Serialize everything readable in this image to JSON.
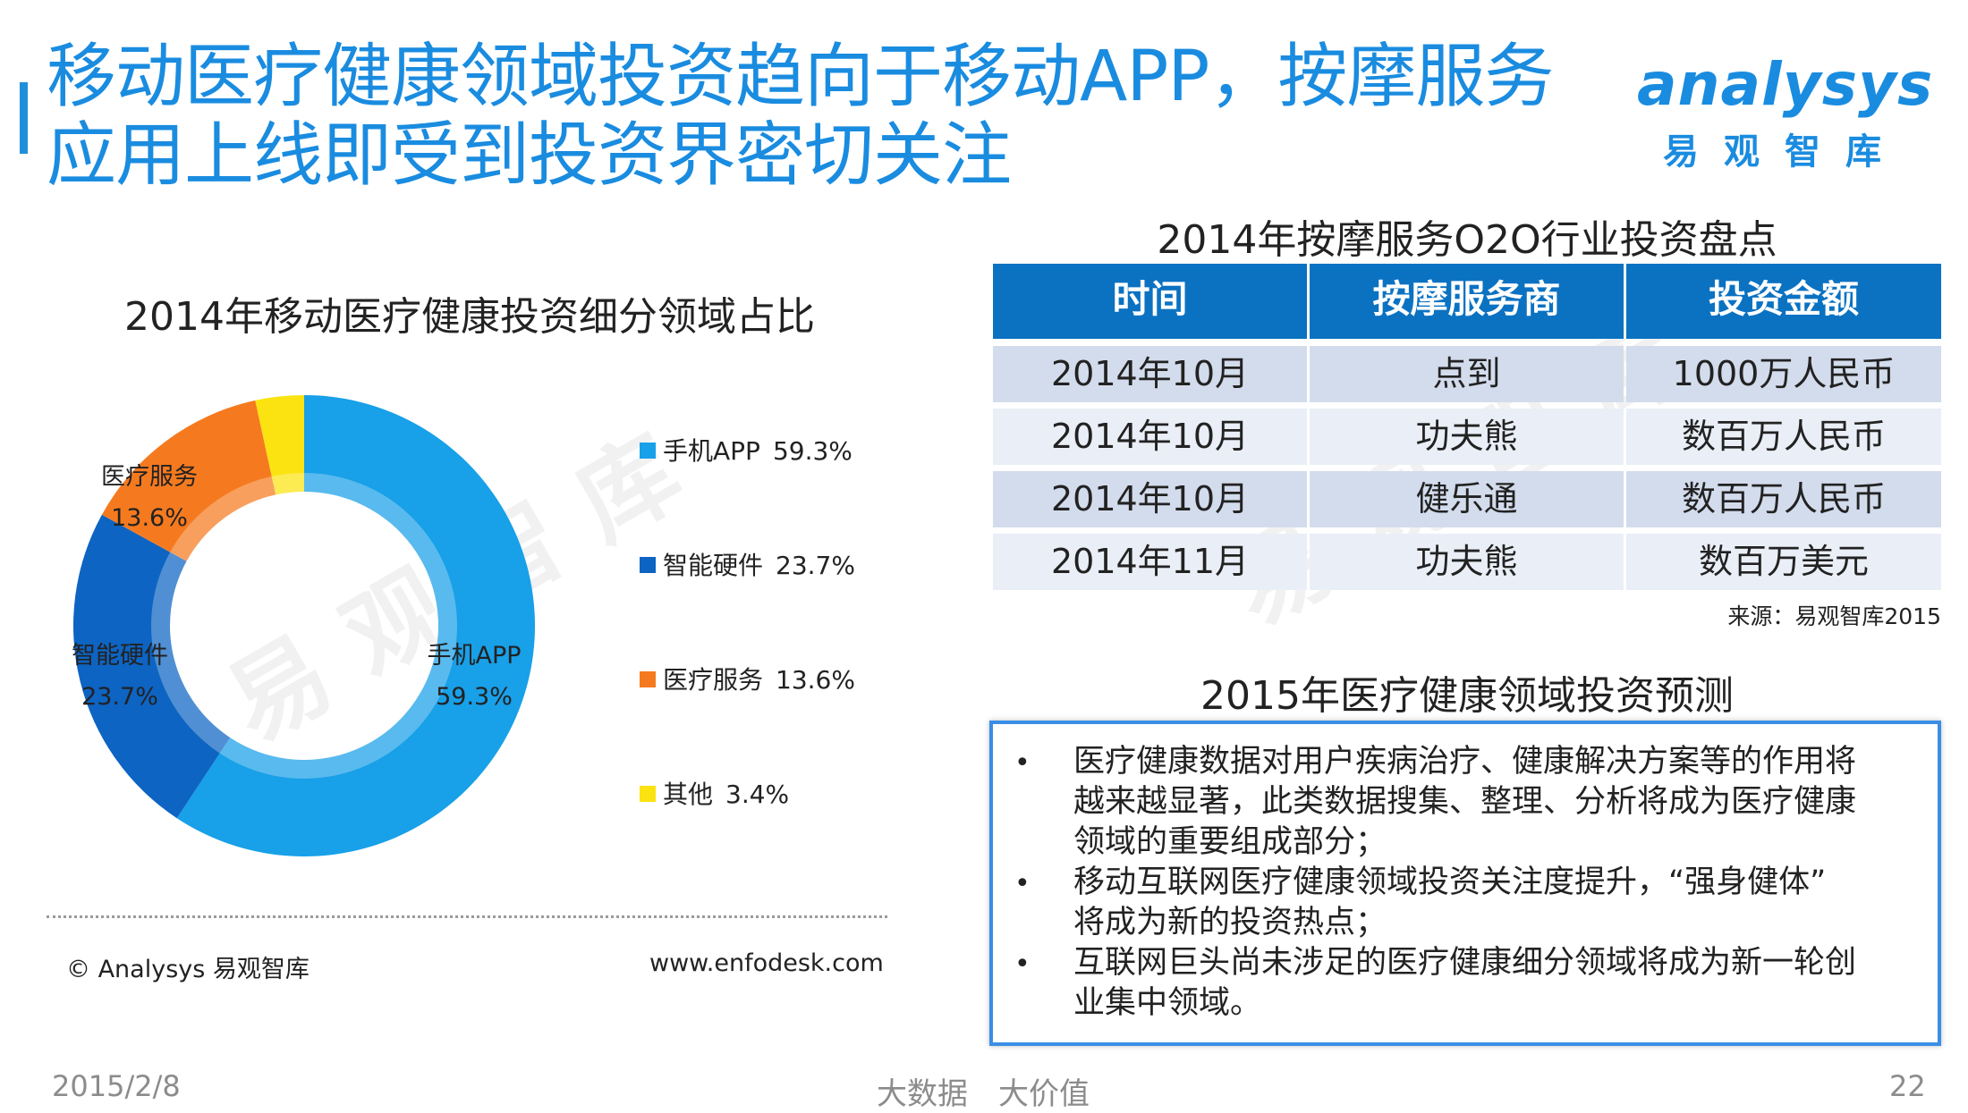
{
  "header": {
    "title_line1": "移动医疗健康领域投资趋向于移动APP，按摩服务",
    "title_line2": "应用上线即受到投资界密切关注"
  },
  "logo": {
    "wordmark": "analysys",
    "cn": "易观智库"
  },
  "watermark": "易观智库",
  "chart_data": {
    "type": "pie",
    "style": "donut",
    "title": "2014年移动医疗健康投资细分领域占比",
    "categories": [
      "手机APP",
      "智能硬件",
      "医疗服务",
      "其他"
    ],
    "values": [
      59.3,
      23.7,
      13.6,
      3.4
    ],
    "value_labels": [
      "59.3%",
      "23.7%",
      "13.6%",
      "3.4%"
    ],
    "colors": [
      "#18a0e8",
      "#0d64c2",
      "#f57a1f",
      "#fbe311"
    ],
    "inner_labels": [
      {
        "name": "手机APP",
        "value": "59.3%"
      },
      {
        "name": "智能硬件",
        "value": "23.7%"
      },
      {
        "name": "医疗服务",
        "value": "13.6%"
      }
    ],
    "legend_position": "right"
  },
  "chart_footer": {
    "copyright": "© Analysys 易观智库",
    "url": "www.enfodesk.com"
  },
  "table": {
    "title": "2014年按摩服务O2O行业投资盘点",
    "headers": [
      "时间",
      "按摩服务商",
      "投资金额"
    ],
    "rows": [
      [
        "2014年10月",
        "点到",
        "1000万人民币"
      ],
      [
        "2014年10月",
        "功夫熊",
        "数百万人民币"
      ],
      [
        "2014年10月",
        "健乐通",
        "数百万人民币"
      ],
      [
        "2014年11月",
        "功夫熊",
        "数百万美元"
      ]
    ],
    "source": "来源：易观智库2015"
  },
  "forecast": {
    "title": "2015年医疗健康领域投资预测",
    "bullet_char": "•",
    "items": [
      {
        "line1": "医疗健康数据对用户疾病治疗、健康解决方案等的作用将",
        "line2": "越来越显著，此类数据搜集、整理、分析将成为医疗健康",
        "line3": "领域的重要组成部分；"
      },
      {
        "line1": "移动互联网医疗健康领域投资关注度提升，“强身健体”",
        "line2": "将成为新的投资热点；"
      },
      {
        "line1": "互联网巨头尚未涉足的医疗健康细分领域将成为新一轮创",
        "line2": "业集中领域。"
      }
    ]
  },
  "footer": {
    "date": "2015/2/8",
    "slogan": "大数据　大价值",
    "page": "22"
  }
}
